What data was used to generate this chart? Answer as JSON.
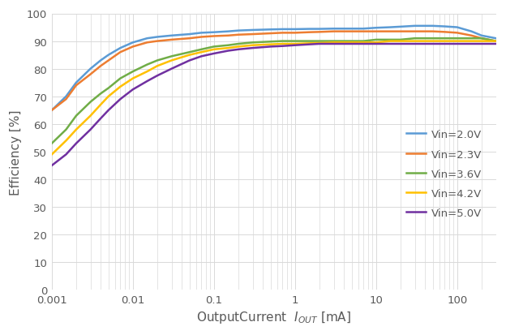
{
  "title": "",
  "xlabel_text": "OutputCurrent  $I_{OUT}$ [mA]",
  "ylabel_text": "Efficiency [%]",
  "xlim": [
    0.001,
    300
  ],
  "ylim": [
    0,
    100
  ],
  "yticks": [
    0,
    10,
    20,
    30,
    40,
    50,
    60,
    70,
    80,
    90,
    100
  ],
  "xticks": [
    0.001,
    0.01,
    0.1,
    1,
    10,
    100
  ],
  "xtick_labels": [
    "0.001",
    "0.01",
    "0.1",
    "1",
    "10",
    "100"
  ],
  "colors": {
    "Vin=2.0V": "#5B9BD5",
    "Vin=2.3V": "#ED7D31",
    "Vin=3.6V": "#70AD47",
    "Vin=4.2V": "#FFC000",
    "Vin=5.0V": "#7030A0"
  },
  "curves": {
    "Vin=2.0V": {
      "x": [
        0.001,
        0.0015,
        0.002,
        0.003,
        0.004,
        0.005,
        0.007,
        0.01,
        0.015,
        0.02,
        0.03,
        0.05,
        0.07,
        0.1,
        0.15,
        0.2,
        0.3,
        0.5,
        0.7,
        1,
        1.5,
        2,
        3,
        5,
        7,
        10,
        15,
        20,
        30,
        50,
        70,
        100,
        150,
        200,
        300
      ],
      "y": [
        65,
        70,
        75,
        80,
        83,
        85,
        87.5,
        89.5,
        91,
        91.5,
        92,
        92.5,
        93,
        93.2,
        93.5,
        93.8,
        94,
        94.2,
        94.3,
        94.3,
        94.4,
        94.4,
        94.5,
        94.5,
        94.5,
        94.8,
        95,
        95.2,
        95.5,
        95.5,
        95.3,
        95,
        93.5,
        92,
        91
      ]
    },
    "Vin=2.3V": {
      "x": [
        0.001,
        0.0015,
        0.002,
        0.003,
        0.004,
        0.005,
        0.007,
        0.01,
        0.015,
        0.02,
        0.03,
        0.05,
        0.07,
        0.1,
        0.15,
        0.2,
        0.3,
        0.5,
        0.7,
        1,
        1.5,
        2,
        3,
        5,
        7,
        10,
        15,
        20,
        30,
        50,
        70,
        100,
        150,
        200,
        300
      ],
      "y": [
        65,
        69,
        74,
        78,
        81,
        83,
        86,
        88,
        89.5,
        90,
        90.5,
        91,
        91.5,
        91.8,
        92,
        92.3,
        92.5,
        92.8,
        93,
        93,
        93.2,
        93.3,
        93.5,
        93.5,
        93.5,
        93.5,
        93.5,
        93.5,
        93.5,
        93.5,
        93.3,
        93,
        92,
        91,
        90
      ]
    },
    "Vin=3.6V": {
      "x": [
        0.001,
        0.0015,
        0.002,
        0.003,
        0.004,
        0.005,
        0.007,
        0.01,
        0.015,
        0.02,
        0.03,
        0.05,
        0.07,
        0.1,
        0.15,
        0.2,
        0.3,
        0.5,
        0.7,
        1,
        1.5,
        2,
        3,
        5,
        7,
        10,
        15,
        20,
        30,
        50,
        70,
        100,
        150,
        200,
        300
      ],
      "y": [
        53,
        58,
        63,
        68,
        71,
        73,
        76.5,
        79,
        81.5,
        83,
        84.5,
        86,
        87,
        88,
        88.5,
        89,
        89.5,
        89.8,
        90,
        90,
        90,
        90,
        90,
        90,
        90,
        90.5,
        90.5,
        90.5,
        91,
        91,
        91,
        91,
        91,
        91,
        90
      ]
    },
    "Vin=4.2V": {
      "x": [
        0.001,
        0.0015,
        0.002,
        0.003,
        0.004,
        0.005,
        0.007,
        0.01,
        0.015,
        0.02,
        0.03,
        0.05,
        0.07,
        0.1,
        0.15,
        0.2,
        0.3,
        0.5,
        0.7,
        1,
        1.5,
        2,
        3,
        5,
        7,
        10,
        15,
        20,
        30,
        50,
        70,
        100,
        150,
        200,
        300
      ],
      "y": [
        49,
        54,
        58,
        63,
        67,
        70,
        73.5,
        76.5,
        79,
        81,
        83,
        85,
        86,
        87,
        87.5,
        88,
        88.5,
        88.8,
        89,
        89,
        89.2,
        89.3,
        89.5,
        89.5,
        89.5,
        89.5,
        90,
        90,
        90,
        90,
        90,
        90,
        90,
        90,
        90
      ]
    },
    "Vin=5.0V": {
      "x": [
        0.001,
        0.0015,
        0.002,
        0.003,
        0.004,
        0.005,
        0.007,
        0.01,
        0.015,
        0.02,
        0.03,
        0.05,
        0.07,
        0.1,
        0.15,
        0.2,
        0.3,
        0.5,
        0.7,
        1,
        1.5,
        2,
        3,
        5,
        7,
        10,
        15,
        20,
        30,
        50,
        70,
        100,
        150,
        200,
        300
      ],
      "y": [
        45,
        49,
        53,
        58,
        62,
        65,
        69,
        72.5,
        75.5,
        77.5,
        80,
        83,
        84.5,
        85.5,
        86.5,
        87,
        87.5,
        88,
        88.2,
        88.5,
        88.8,
        89,
        89,
        89,
        89,
        89,
        89,
        89,
        89,
        89,
        89,
        89,
        89,
        89,
        89
      ]
    }
  },
  "legend_labels": [
    "Vin=2.0V",
    "Vin=2.3V",
    "Vin=3.6V",
    "Vin=4.2V",
    "Vin=5.0V"
  ],
  "background_color": "#FFFFFF",
  "plot_bg_color": "#FFFFFF",
  "grid_color": "#D9D9D9",
  "tick_color": "#595959",
  "label_color": "#595959",
  "linewidth": 1.8,
  "legend_fontsize": 9.5,
  "axis_fontsize": 11
}
